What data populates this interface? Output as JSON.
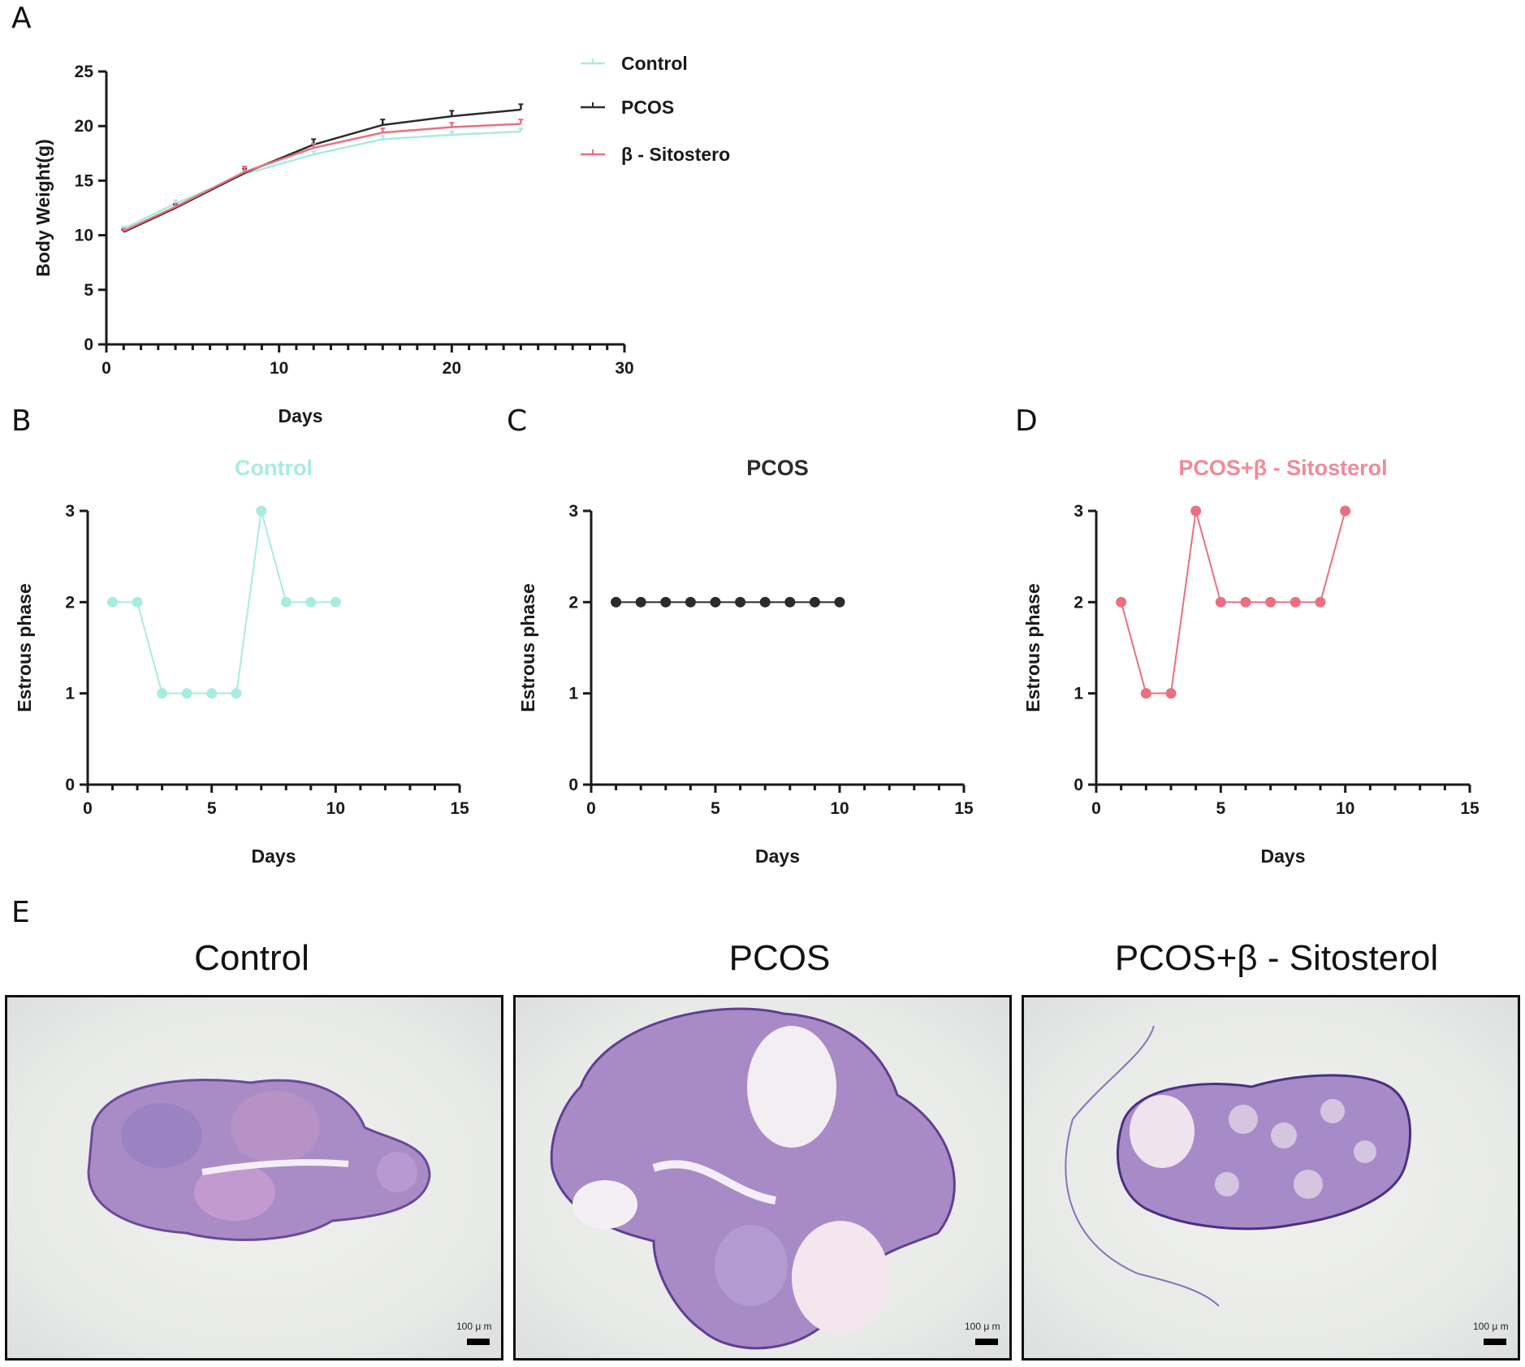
{
  "panels": {
    "A": "A",
    "B": "B",
    "C": "C",
    "D": "D",
    "E": "E"
  },
  "colors": {
    "control": "#a8ece0",
    "pcos": "#2b2b2b",
    "sito": "#e9707f",
    "sito_title": "#f08a99"
  },
  "chart_data": [
    {
      "id": "A",
      "type": "line",
      "title": "",
      "xlabel": "Days",
      "ylabel": "Body Weight(g)",
      "xlim": [
        0,
        30
      ],
      "ylim": [
        0,
        25
      ],
      "xticks": [
        0,
        10,
        20,
        30
      ],
      "yticks": [
        0,
        5,
        10,
        15,
        20,
        25
      ],
      "legend": "top-right",
      "series": [
        {
          "name": "Control",
          "color": "#a8ece0",
          "x": [
            1,
            4,
            8,
            12,
            16,
            20,
            24
          ],
          "y": [
            10.6,
            12.9,
            15.6,
            17.4,
            18.8,
            19.2,
            19.5
          ],
          "err": [
            0.2,
            0.3,
            0.3,
            0.3,
            0.3,
            0.3,
            0.3
          ]
        },
        {
          "name": "PCOS",
          "color": "#2b2b2b",
          "x": [
            1,
            4,
            8,
            12,
            16,
            20,
            24
          ],
          "y": [
            10.3,
            12.5,
            15.7,
            18.3,
            20.1,
            20.9,
            21.5
          ],
          "err": [
            0.2,
            0.3,
            0.4,
            0.5,
            0.5,
            0.5,
            0.5
          ]
        },
        {
          "name": "β - Sitostero",
          "color": "#e9707f",
          "x": [
            1,
            4,
            8,
            12,
            16,
            20,
            24
          ],
          "y": [
            10.4,
            12.6,
            15.8,
            18.0,
            19.4,
            19.9,
            20.2
          ],
          "err": [
            0.2,
            0.3,
            0.5,
            0.4,
            0.4,
            0.4,
            0.4
          ]
        }
      ]
    },
    {
      "id": "B",
      "type": "line",
      "title": "Control",
      "xlabel": "Days",
      "ylabel": "Estrous phase",
      "xlim": [
        0,
        15
      ],
      "ylim": [
        0,
        3
      ],
      "xticks": [
        0,
        5,
        10,
        15
      ],
      "yticks": [
        0,
        1,
        2,
        3
      ],
      "series": [
        {
          "name": "Control",
          "color": "#a8ece0",
          "x": [
            1,
            2,
            3,
            4,
            5,
            6,
            7,
            8,
            9,
            10
          ],
          "y": [
            2,
            2,
            1,
            1,
            1,
            1,
            3,
            2,
            2,
            2
          ]
        }
      ]
    },
    {
      "id": "C",
      "type": "line",
      "title": "PCOS",
      "xlabel": "Days",
      "ylabel": "Estrous phase",
      "xlim": [
        0,
        15
      ],
      "ylim": [
        0,
        3
      ],
      "xticks": [
        0,
        5,
        10,
        15
      ],
      "yticks": [
        0,
        1,
        2,
        3
      ],
      "series": [
        {
          "name": "PCOS",
          "color": "#2b2b2b",
          "x": [
            1,
            2,
            3,
            4,
            5,
            6,
            7,
            8,
            9,
            10
          ],
          "y": [
            2,
            2,
            2,
            2,
            2,
            2,
            2,
            2,
            2,
            2
          ]
        }
      ]
    },
    {
      "id": "D",
      "type": "line",
      "title": "PCOS+β - Sitosterol",
      "xlabel": "Days",
      "ylabel": "Estrous phase",
      "xlim": [
        0,
        15
      ],
      "ylim": [
        0,
        3
      ],
      "xticks": [
        0,
        5,
        10,
        15
      ],
      "yticks": [
        0,
        1,
        2,
        3
      ],
      "series": [
        {
          "name": "PCOS+β - Sitosterol",
          "color": "#e9707f",
          "x": [
            1,
            2,
            3,
            4,
            5,
            6,
            7,
            8,
            9,
            10
          ],
          "y": [
            2,
            1,
            1,
            3,
            2,
            2,
            2,
            2,
            2,
            3
          ]
        }
      ]
    }
  ],
  "histology": {
    "titles": [
      "Control",
      "PCOS",
      "PCOS+β - Sitosterol"
    ],
    "scale_label": "100 μ m"
  }
}
